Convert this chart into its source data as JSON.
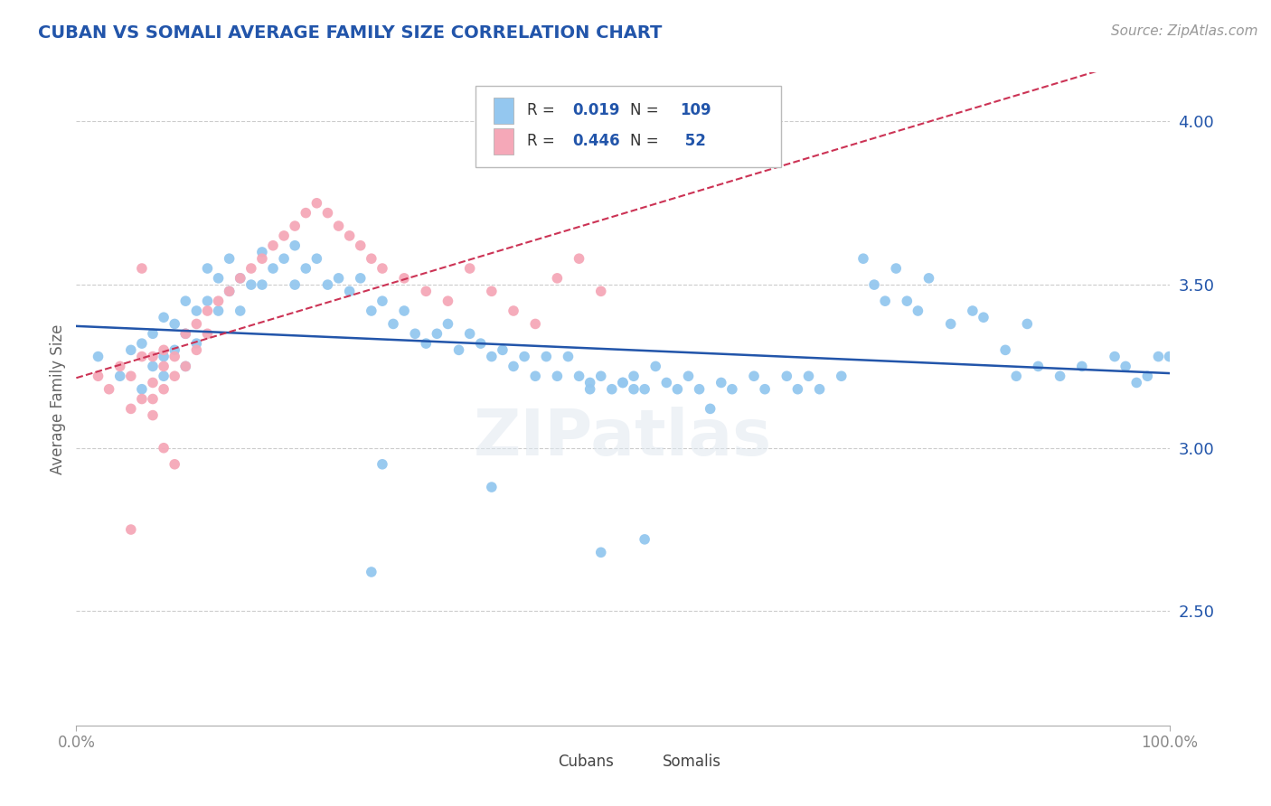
{
  "title": "CUBAN VS SOMALI AVERAGE FAMILY SIZE CORRELATION CHART",
  "source_text": "Source: ZipAtlas.com",
  "ylabel": "Average Family Size",
  "xmin": 0.0,
  "xmax": 1.0,
  "ymin": 2.15,
  "ymax": 4.15,
  "yticks": [
    2.5,
    3.0,
    3.5,
    4.0
  ],
  "xtick_labels": [
    "0.0%",
    "100.0%"
  ],
  "cuban_color": "#94c7ef",
  "somali_color": "#f5a8b8",
  "cuban_line_color": "#2255aa",
  "somali_line_color": "#cc3355",
  "grid_color": "#cccccc",
  "title_color": "#2255aa",
  "axis_color": "#2255aa",
  "watermark": "ZIPatlas",
  "legend_R_cuban": "0.019",
  "legend_N_cuban": "109",
  "legend_R_somali": "0.446",
  "legend_N_somali": " 52",
  "cuban_x": [
    0.02,
    0.04,
    0.05,
    0.06,
    0.06,
    0.07,
    0.07,
    0.08,
    0.08,
    0.08,
    0.09,
    0.09,
    0.1,
    0.1,
    0.1,
    0.11,
    0.11,
    0.12,
    0.12,
    0.13,
    0.13,
    0.14,
    0.14,
    0.15,
    0.15,
    0.16,
    0.17,
    0.17,
    0.18,
    0.19,
    0.2,
    0.2,
    0.21,
    0.22,
    0.23,
    0.24,
    0.25,
    0.26,
    0.27,
    0.28,
    0.29,
    0.3,
    0.31,
    0.32,
    0.33,
    0.34,
    0.35,
    0.36,
    0.37,
    0.38,
    0.39,
    0.4,
    0.41,
    0.42,
    0.43,
    0.44,
    0.45,
    0.46,
    0.47,
    0.48,
    0.49,
    0.5,
    0.51,
    0.52,
    0.53,
    0.54,
    0.55,
    0.56,
    0.57,
    0.58,
    0.59,
    0.6,
    0.62,
    0.63,
    0.65,
    0.66,
    0.67,
    0.68,
    0.7,
    0.72,
    0.73,
    0.74,
    0.75,
    0.76,
    0.77,
    0.78,
    0.8,
    0.82,
    0.83,
    0.85,
    0.86,
    0.87,
    0.88,
    0.9,
    0.92,
    0.95,
    0.96,
    0.97,
    0.98,
    0.99,
    1.0,
    0.28,
    0.38,
    0.27,
    0.47,
    0.48,
    0.5,
    0.51,
    0.52
  ],
  "cuban_y": [
    3.28,
    3.22,
    3.3,
    3.18,
    3.32,
    3.35,
    3.25,
    3.4,
    3.28,
    3.22,
    3.38,
    3.3,
    3.45,
    3.35,
    3.25,
    3.42,
    3.32,
    3.55,
    3.45,
    3.52,
    3.42,
    3.58,
    3.48,
    3.52,
    3.42,
    3.5,
    3.6,
    3.5,
    3.55,
    3.58,
    3.62,
    3.5,
    3.55,
    3.58,
    3.5,
    3.52,
    3.48,
    3.52,
    3.42,
    3.45,
    3.38,
    3.42,
    3.35,
    3.32,
    3.35,
    3.38,
    3.3,
    3.35,
    3.32,
    3.28,
    3.3,
    3.25,
    3.28,
    3.22,
    3.28,
    3.22,
    3.28,
    3.22,
    3.18,
    3.22,
    3.18,
    3.2,
    3.22,
    3.18,
    3.25,
    3.2,
    3.18,
    3.22,
    3.18,
    3.12,
    3.2,
    3.18,
    3.22,
    3.18,
    3.22,
    3.18,
    3.22,
    3.18,
    3.22,
    3.58,
    3.5,
    3.45,
    3.55,
    3.45,
    3.42,
    3.52,
    3.38,
    3.42,
    3.4,
    3.3,
    3.22,
    3.38,
    3.25,
    3.22,
    3.25,
    3.28,
    3.25,
    3.2,
    3.22,
    3.28,
    3.28,
    2.95,
    2.88,
    2.62,
    3.2,
    2.68,
    3.2,
    3.18,
    2.72
  ],
  "somali_x": [
    0.02,
    0.03,
    0.04,
    0.05,
    0.05,
    0.06,
    0.06,
    0.07,
    0.07,
    0.07,
    0.08,
    0.08,
    0.08,
    0.09,
    0.09,
    0.1,
    0.1,
    0.11,
    0.11,
    0.12,
    0.12,
    0.13,
    0.14,
    0.15,
    0.16,
    0.17,
    0.18,
    0.19,
    0.2,
    0.21,
    0.22,
    0.23,
    0.24,
    0.25,
    0.26,
    0.27,
    0.28,
    0.3,
    0.32,
    0.34,
    0.36,
    0.38,
    0.4,
    0.42,
    0.44,
    0.46,
    0.48,
    0.07,
    0.06,
    0.08,
    0.05,
    0.09
  ],
  "somali_y": [
    3.22,
    3.18,
    3.25,
    3.12,
    3.22,
    3.15,
    3.28,
    3.2,
    3.28,
    3.15,
    3.25,
    3.18,
    3.3,
    3.28,
    3.22,
    3.35,
    3.25,
    3.38,
    3.3,
    3.42,
    3.35,
    3.45,
    3.48,
    3.52,
    3.55,
    3.58,
    3.62,
    3.65,
    3.68,
    3.72,
    3.75,
    3.72,
    3.68,
    3.65,
    3.62,
    3.58,
    3.55,
    3.52,
    3.48,
    3.45,
    3.55,
    3.48,
    3.42,
    3.38,
    3.52,
    3.58,
    3.48,
    3.1,
    3.55,
    3.0,
    2.75,
    2.95
  ]
}
